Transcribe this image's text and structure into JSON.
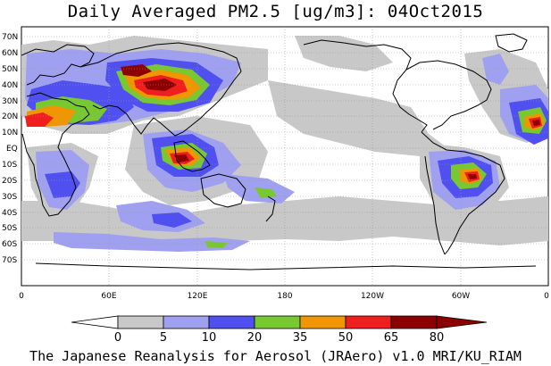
{
  "title": "Daily Averaged PM2.5 [ug/m3]: 04Oct2015",
  "credit": "The Japanese Reanalysis for Aerosol (JRAero) v1.0 MRI/KU_RIAM",
  "latitude_labels": [
    "70N",
    "60N",
    "50N",
    "40N",
    "30N",
    "20N",
    "10N",
    "EQ",
    "10S",
    "20S",
    "30S",
    "40S",
    "50S",
    "60S",
    "70S"
  ],
  "longitude_labels": [
    "0",
    "60E",
    "120E",
    "180",
    "120W",
    "60W",
    "0"
  ],
  "colorbar": {
    "ticks": [
      "0",
      "5",
      "10",
      "20",
      "35",
      "50",
      "65",
      "80"
    ],
    "colors": [
      "#ffffff",
      "#c8c8c8",
      "#a0a0f0",
      "#5050f0",
      "#78c832",
      "#f09600",
      "#f01e1e",
      "#8c0000"
    ]
  },
  "map_colors": {
    "ocean": "#ffffff",
    "coast": "#000000",
    "grid": "#999999"
  }
}
